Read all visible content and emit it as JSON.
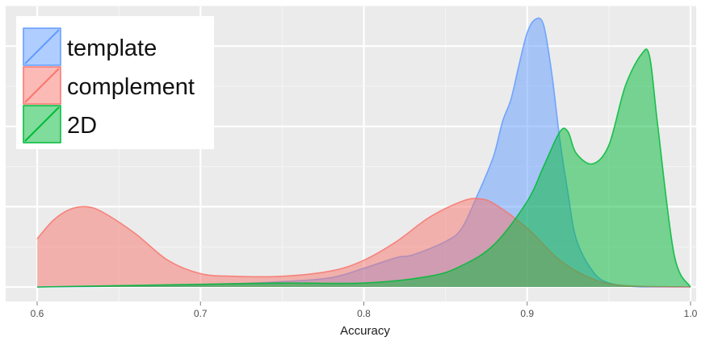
{
  "chart_data": {
    "type": "area",
    "xlabel": "Accuracy",
    "ylabel": "",
    "xlim": [
      0.6,
      1.0
    ],
    "ylim": [
      0,
      1.05
    ],
    "x_ticks": [
      0.6,
      0.7,
      0.8,
      0.9,
      1.0
    ],
    "x_tick_labels": [
      "0.6",
      "0.7",
      "0.8",
      "0.9",
      "1.0"
    ],
    "y_ticks_drawn_without_labels": true,
    "grid": true,
    "legend_position": "top-left",
    "series": [
      {
        "name": "template",
        "color": "#619cff",
        "points": [
          [
            0.6,
            0.0
          ],
          [
            0.65,
            0.003
          ],
          [
            0.7,
            0.008
          ],
          [
            0.75,
            0.02
          ],
          [
            0.78,
            0.035
          ],
          [
            0.8,
            0.07
          ],
          [
            0.82,
            0.11
          ],
          [
            0.83,
            0.12
          ],
          [
            0.85,
            0.17
          ],
          [
            0.86,
            0.22
          ],
          [
            0.87,
            0.35
          ],
          [
            0.875,
            0.42
          ],
          [
            0.88,
            0.5
          ],
          [
            0.885,
            0.62
          ],
          [
            0.89,
            0.7
          ],
          [
            0.895,
            0.83
          ],
          [
            0.9,
            0.95
          ],
          [
            0.905,
            1.0
          ],
          [
            0.91,
            0.98
          ],
          [
            0.915,
            0.8
          ],
          [
            0.92,
            0.55
          ],
          [
            0.925,
            0.35
          ],
          [
            0.93,
            0.18
          ],
          [
            0.94,
            0.06
          ],
          [
            0.95,
            0.015
          ],
          [
            0.97,
            0.0
          ],
          [
            1.0,
            0.0
          ]
        ]
      },
      {
        "name": "complement",
        "color": "#f8766d",
        "points": [
          [
            0.6,
            0.18
          ],
          [
            0.61,
            0.25
          ],
          [
            0.62,
            0.29
          ],
          [
            0.63,
            0.3
          ],
          [
            0.64,
            0.28
          ],
          [
            0.66,
            0.2
          ],
          [
            0.68,
            0.1
          ],
          [
            0.7,
            0.05
          ],
          [
            0.72,
            0.04
          ],
          [
            0.75,
            0.04
          ],
          [
            0.78,
            0.06
          ],
          [
            0.8,
            0.1
          ],
          [
            0.82,
            0.17
          ],
          [
            0.84,
            0.26
          ],
          [
            0.86,
            0.32
          ],
          [
            0.87,
            0.33
          ],
          [
            0.88,
            0.31
          ],
          [
            0.9,
            0.22
          ],
          [
            0.92,
            0.1
          ],
          [
            0.94,
            0.03
          ],
          [
            0.96,
            0.005
          ],
          [
            1.0,
            0.0
          ]
        ]
      },
      {
        "name": "2D",
        "color": "#00ba38",
        "points": [
          [
            0.6,
            0.0
          ],
          [
            0.65,
            0.005
          ],
          [
            0.7,
            0.01
          ],
          [
            0.75,
            0.015
          ],
          [
            0.8,
            0.015
          ],
          [
            0.84,
            0.04
          ],
          [
            0.86,
            0.08
          ],
          [
            0.88,
            0.16
          ],
          [
            0.9,
            0.32
          ],
          [
            0.91,
            0.45
          ],
          [
            0.92,
            0.58
          ],
          [
            0.925,
            0.58
          ],
          [
            0.93,
            0.5
          ],
          [
            0.94,
            0.46
          ],
          [
            0.95,
            0.53
          ],
          [
            0.96,
            0.75
          ],
          [
            0.97,
            0.87
          ],
          [
            0.975,
            0.86
          ],
          [
            0.98,
            0.6
          ],
          [
            0.99,
            0.12
          ],
          [
            1.0,
            0.0
          ]
        ]
      }
    ]
  }
}
